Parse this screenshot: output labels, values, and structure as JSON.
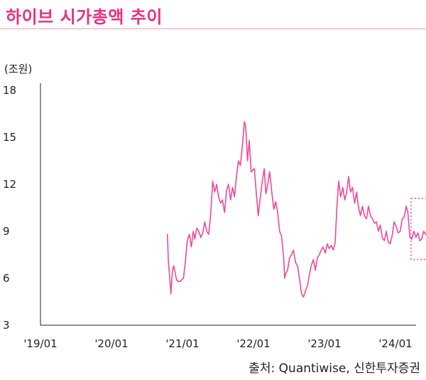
{
  "header": {
    "title": "하이브 시가총액 추이"
  },
  "footer": {
    "source": "출처: Quantiwise, 신한투자증권"
  },
  "chart_data": {
    "type": "line",
    "title": "하이브 시가총액 추이",
    "ylabel": "(조원)",
    "xlabel": "",
    "ylim": [
      3,
      18
    ],
    "yticks": [
      3,
      6,
      9,
      12,
      15,
      18
    ],
    "xticks": [
      "'19/01",
      "'20/01",
      "'21/01",
      "'22/01",
      "'23/01",
      "'24/01"
    ],
    "grid": false,
    "line_color": "#f0489a",
    "series": [
      {
        "name": "",
        "x": [
          "2020-10-15",
          "2020-10-20",
          "2020-10-26",
          "2020-11-02",
          "2020-11-09",
          "2020-11-16",
          "2020-11-23",
          "2020-12-01",
          "2020-12-10",
          "2020-12-20",
          "2021-01-05",
          "2021-01-15",
          "2021-01-25",
          "2021-02-05",
          "2021-02-15",
          "2021-02-25",
          "2021-03-05",
          "2021-03-15",
          "2021-03-25",
          "2021-04-05",
          "2021-04-15",
          "2021-04-25",
          "2021-05-05",
          "2021-05-15",
          "2021-05-25",
          "2021-06-05",
          "2021-06-15",
          "2021-06-25",
          "2021-07-05",
          "2021-07-15",
          "2021-07-25",
          "2021-08-05",
          "2021-08-15",
          "2021-08-25",
          "2021-09-05",
          "2021-09-15",
          "2021-09-25",
          "2021-10-05",
          "2021-10-15",
          "2021-10-25",
          "2021-11-05",
          "2021-11-15",
          "2021-11-20",
          "2021-11-25",
          "2021-12-01",
          "2021-12-10",
          "2021-12-20",
          "2022-01-05",
          "2022-01-15",
          "2022-01-25",
          "2022-02-05",
          "2022-02-15",
          "2022-02-25",
          "2022-03-05",
          "2022-03-15",
          "2022-03-25",
          "2022-04-05",
          "2022-04-15",
          "2022-04-25",
          "2022-05-05",
          "2022-05-15",
          "2022-05-25",
          "2022-06-05",
          "2022-06-10",
          "2022-06-15",
          "2022-06-25",
          "2022-07-05",
          "2022-07-15",
          "2022-07-25",
          "2022-08-05",
          "2022-08-15",
          "2022-08-25",
          "2022-09-05",
          "2022-09-15",
          "2022-09-25",
          "2022-10-05",
          "2022-10-15",
          "2022-10-25",
          "2022-11-05",
          "2022-11-15",
          "2022-11-25",
          "2022-12-05",
          "2022-12-15",
          "2022-12-25",
          "2023-01-05",
          "2023-01-15",
          "2023-01-25",
          "2023-02-05",
          "2023-02-15",
          "2023-02-25",
          "2023-03-05",
          "2023-03-15",
          "2023-03-25",
          "2023-04-05",
          "2023-04-15",
          "2023-04-25",
          "2023-05-05",
          "2023-05-15",
          "2023-05-25",
          "2023-06-05",
          "2023-06-15",
          "2023-06-25",
          "2023-07-05",
          "2023-07-15",
          "2023-07-25",
          "2023-08-05",
          "2023-08-15",
          "2023-08-25",
          "2023-09-05",
          "2023-09-15",
          "2023-09-25",
          "2023-10-05",
          "2023-10-15",
          "2023-10-25",
          "2023-11-05",
          "2023-11-15",
          "2023-11-25",
          "2023-12-05",
          "2023-12-15",
          "2023-12-25",
          "2024-01-05",
          "2024-01-15",
          "2024-01-25",
          "2024-02-05",
          "2024-02-15",
          "2024-02-25",
          "2024-03-05",
          "2024-03-15",
          "2024-03-25",
          "2024-04-05",
          "2024-04-15",
          "2024-04-25",
          "2024-05-05",
          "2024-05-15",
          "2024-05-25",
          "2024-06-05"
        ],
        "values": [
          8.8,
          7.0,
          6.2,
          5.0,
          6.4,
          6.8,
          6.4,
          5.9,
          5.8,
          5.8,
          6.0,
          7.0,
          8.4,
          8.8,
          8.0,
          9.0,
          8.5,
          9.2,
          9.0,
          8.6,
          8.9,
          9.6,
          9.0,
          8.8,
          10.0,
          12.2,
          11.5,
          12.0,
          11.2,
          10.8,
          11.0,
          10.2,
          11.6,
          12.0,
          11.0,
          11.8,
          11.2,
          12.5,
          13.5,
          13.2,
          14.5,
          16.0,
          15.8,
          15.0,
          13.5,
          14.8,
          12.8,
          13.0,
          11.5,
          10.0,
          11.2,
          12.2,
          13.0,
          11.4,
          12.0,
          12.8,
          11.5,
          10.4,
          10.9,
          10.2,
          9.0,
          8.7,
          7.3,
          6.0,
          6.3,
          6.5,
          7.3,
          7.5,
          7.8,
          7.0,
          6.8,
          6.0,
          5.0,
          4.8,
          5.2,
          5.5,
          6.2,
          6.8,
          7.2,
          6.5,
          7.3,
          7.5,
          7.8,
          8.0,
          7.6,
          8.2,
          7.9,
          8.1,
          7.8,
          8.3,
          10.4,
          12.2,
          11.2,
          11.8,
          11.0,
          11.5,
          12.5,
          11.5,
          11.8,
          10.8,
          11.5,
          10.5,
          10.0,
          10.6,
          10.0,
          9.8,
          10.6,
          10.0,
          9.8,
          9.5,
          9.6,
          9.0,
          9.4,
          8.6,
          8.4,
          9.0,
          8.3,
          8.2,
          8.7,
          9.6,
          9.3,
          8.9,
          9.0,
          9.8,
          9.9,
          10.6,
          10.2,
          8.6,
          8.5,
          9.0,
          8.6,
          8.9,
          8.4,
          8.5,
          9.0,
          8.8
        ]
      }
    ],
    "highlight": {
      "from": "2024-04-05",
      "to": "2024-06-05",
      "style": "dotted-box",
      "color": "#f0489a"
    }
  }
}
